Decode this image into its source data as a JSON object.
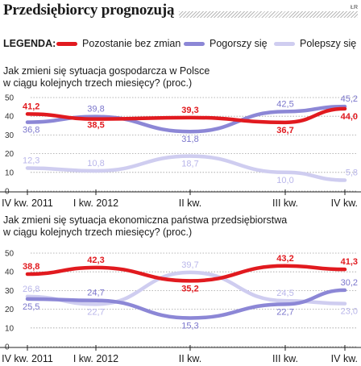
{
  "header": {
    "title": "Przedsiębiorcy prognozują",
    "source": "ŁR"
  },
  "legend": {
    "label": "LEGENDA:",
    "items": [
      {
        "label": "Pozostanie bez zmian",
        "color": "#e11a1f"
      },
      {
        "label": "Pogorszy się",
        "color": "#8c87d6"
      },
      {
        "label": "Polepszy się",
        "color": "#cfcdf0"
      }
    ]
  },
  "chart_data": [
    {
      "type": "line",
      "title": "Jak zmieni się sytuacja gospodarcza w Polsce w ciągu kolejnych trzech miesięcy? (proc.)",
      "title_lines": [
        "Jak zmieni się sytuacja gospodarcza w Polsce",
        "w ciągu kolejnych trzech miesięcy? (proc.)"
      ],
      "categories": [
        "IV kw. 2011",
        "I kw. 2012",
        "II kw.",
        "III kw.",
        "IV kw."
      ],
      "y_ticks": [
        0,
        10,
        20,
        30,
        40,
        50
      ],
      "ylim": [
        0,
        50
      ],
      "grid": true,
      "series": [
        {
          "name": "Pozostanie bez zmian",
          "color": "#e11a1f",
          "values": [
            41.2,
            38.5,
            39.3,
            36.7,
            44.0
          ],
          "labels": [
            "41,2",
            "38,5",
            "39,3",
            "36,7",
            "44,0"
          ]
        },
        {
          "name": "Pogorszy się",
          "color": "#8c87d6",
          "values": [
            36.8,
            39.8,
            31.8,
            42.5,
            45.2
          ],
          "labels": [
            "36,8",
            "39,8",
            "31,8",
            "42,5",
            "45,2"
          ]
        },
        {
          "name": "Polepszy się",
          "color": "#cfcdf0",
          "values": [
            12.3,
            10.8,
            18.7,
            10.0,
            5.8
          ],
          "labels": [
            "12,3",
            "10,8",
            "18,7",
            "10,0",
            "5,8"
          ]
        }
      ]
    },
    {
      "type": "line",
      "title": "Jak zmieni się sytuacja ekonomiczna państwa przedsiębiorstwa w ciągu kolejnych trzech miesięcy? (proc.)",
      "title_lines": [
        "Jak zmieni się sytuacja ekonomiczna państwa przedsiębiorstwa",
        "w ciągu kolejnych trzech miesięcy? (proc.)"
      ],
      "categories": [
        "IV kw. 2011",
        "I kw. 2012",
        "II kw.",
        "III kw.",
        "IV kw."
      ],
      "y_ticks": [
        0,
        10,
        20,
        30,
        40,
        50
      ],
      "ylim": [
        0,
        50
      ],
      "grid": true,
      "series": [
        {
          "name": "Pozostanie bez zmian",
          "color": "#e11a1f",
          "values": [
            38.8,
            42.3,
            35.2,
            43.2,
            41.3
          ],
          "labels": [
            "38,8",
            "42,3",
            "35,2",
            "43,2",
            "41,3"
          ]
        },
        {
          "name": "Pogorszy się",
          "color": "#8c87d6",
          "values": [
            25.5,
            24.7,
            15.3,
            22.7,
            30.2
          ],
          "labels": [
            "25,5",
            "24,7",
            "15,3",
            "22,7",
            "30,2"
          ]
        },
        {
          "name": "Polepszy się",
          "color": "#cfcdf0",
          "values": [
            26.8,
            22.7,
            39.7,
            24.5,
            23.0
          ],
          "labels": [
            "26,8",
            "22,7",
            "39,7",
            "24,5",
            "23,0"
          ]
        }
      ]
    }
  ]
}
